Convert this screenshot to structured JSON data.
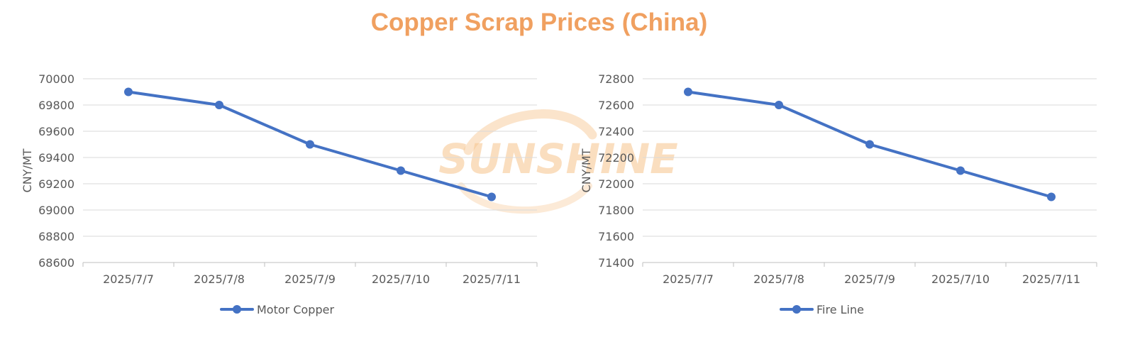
{
  "title": "Copper Scrap Prices (China)",
  "watermark": "SUNSHINE",
  "colors": {
    "title": "#f0a060",
    "series": "#4472c4",
    "grid": "#d9d9d9",
    "axis": "#bfbfbf",
    "text": "#595959",
    "watermark": "#f6c48c"
  },
  "chart_data": [
    {
      "type": "line",
      "categories": [
        "2025/7/7",
        "2025/7/8",
        "2025/7/9",
        "2025/7/10",
        "2025/7/11"
      ],
      "series": [
        {
          "name": "Motor Copper",
          "values": [
            69900,
            69800,
            69500,
            69300,
            69100
          ]
        }
      ],
      "ylabel": "CNY/MT",
      "ylim": [
        68600,
        70000
      ],
      "yticks": [
        68600,
        68800,
        69000,
        69200,
        69400,
        69600,
        69800,
        70000
      ],
      "grid": true,
      "legend": "bottom"
    },
    {
      "type": "line",
      "categories": [
        "2025/7/7",
        "2025/7/8",
        "2025/7/9",
        "2025/7/10",
        "2025/7/11"
      ],
      "series": [
        {
          "name": "Fire Line",
          "values": [
            72700,
            72600,
            72300,
            72100,
            71900
          ]
        }
      ],
      "ylabel": "CNY/MT",
      "ylim": [
        71400,
        72800
      ],
      "yticks": [
        71400,
        71600,
        71800,
        72000,
        72200,
        72400,
        72600,
        72800
      ],
      "grid": true,
      "legend": "bottom"
    }
  ]
}
